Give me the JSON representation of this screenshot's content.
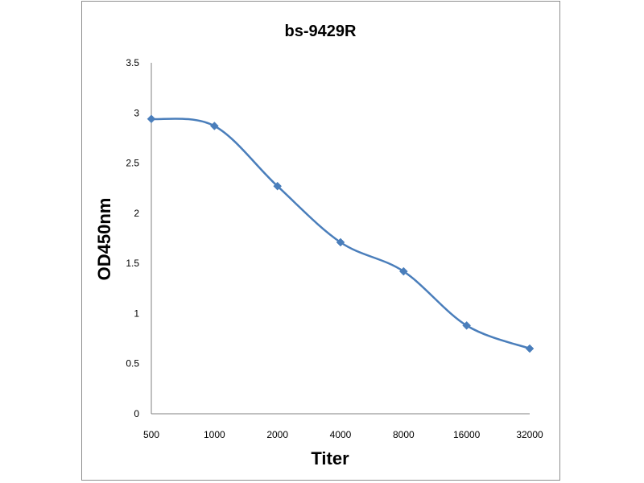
{
  "chart_data": {
    "type": "line",
    "title": "bs-9429R",
    "xlabel": "Titer",
    "ylabel": "OD450nm",
    "categories": [
      "500",
      "1000",
      "2000",
      "4000",
      "8000",
      "16000",
      "32000"
    ],
    "series": [
      {
        "values": [
          2.94,
          2.87,
          2.27,
          1.71,
          1.42,
          0.88,
          0.65
        ]
      }
    ],
    "ylim": [
      0,
      3.5
    ],
    "yticks": [
      "0",
      "0.5",
      "1",
      "1.5",
      "2",
      "2.5",
      "3",
      "3.5"
    ],
    "grid": false,
    "legend": "none",
    "line_color": "#4a7ebb",
    "smooth": true,
    "marker": "diamond"
  }
}
